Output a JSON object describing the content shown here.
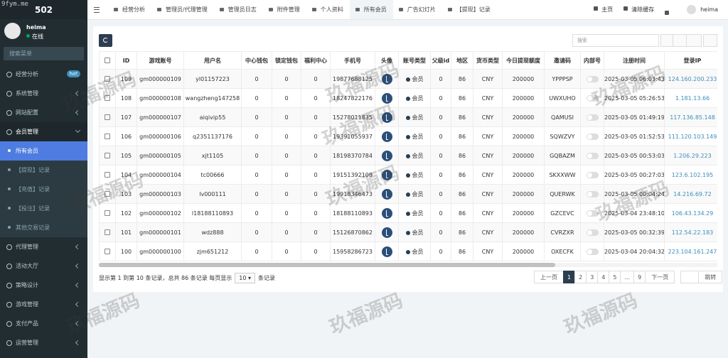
{
  "watermark": {
    "site": "9fym.me",
    "text": "玖福源码"
  },
  "sidebar": {
    "logo": "502",
    "user": {
      "name": "heima",
      "status": "在线"
    },
    "search_placeholder": "搜索菜单",
    "menu": [
      {
        "label": "经营分析",
        "badge": "hot"
      },
      {
        "label": "系统管理"
      },
      {
        "label": "网站配置"
      },
      {
        "label": "会员管理",
        "open": true,
        "children": [
          {
            "label": "所有会员",
            "active": true
          },
          {
            "label": "【提现】记录"
          },
          {
            "label": "【充值】记录"
          },
          {
            "label": "【投注】记录"
          },
          {
            "label": "其他交易记录"
          }
        ]
      },
      {
        "label": "代理管理"
      },
      {
        "label": "活动大厅"
      },
      {
        "label": "策略设计"
      },
      {
        "label": "游戏管理"
      },
      {
        "label": "支付产品"
      },
      {
        "label": "运营管理"
      }
    ]
  },
  "topbar": {
    "tabs": [
      {
        "label": "经营分析"
      },
      {
        "label": "管理员/代理管理"
      },
      {
        "label": "管理员日志"
      },
      {
        "label": "附件管理"
      },
      {
        "label": "个人资料"
      },
      {
        "label": "所有会员",
        "active": true
      },
      {
        "label": "广告幻灯片"
      },
      {
        "label": "【提现】记录"
      }
    ],
    "home": "主页",
    "clear_cache": "清除缓存",
    "user": "heima"
  },
  "toolbar": {
    "search_placeholder": "搜索"
  },
  "table": {
    "columns": [
      "ID",
      "游戏账号",
      "用户名",
      "中心钱包",
      "锁定钱包",
      "福利中心",
      "手机号",
      "头像",
      "账号类型",
      "父级id",
      "地区",
      "货币类型",
      "今日提现额度",
      "邀请码",
      "内部号",
      "注册时间",
      "登录IP"
    ],
    "rows": [
      [
        109,
        "gm000000109",
        "yl01157223",
        0,
        0,
        0,
        "19877688125",
        null,
        "会员",
        0,
        86,
        "CNY",
        200000,
        "YPPPSP",
        null,
        "2025-03-05 06:03:43",
        "124.160.200.233"
      ],
      [
        108,
        "gm000000108",
        "wangzheng147258",
        0,
        0,
        0,
        "18247822176",
        null,
        "会员",
        0,
        86,
        "CNY",
        200000,
        "UWXUHO",
        null,
        "2025-03-05 05:26:53",
        "1.181.13.66"
      ],
      [
        107,
        "gm000000107",
        "aiqivip55",
        0,
        0,
        0,
        "15278011835",
        null,
        "会员",
        0,
        86,
        "CNY",
        200000,
        "QAMUSI",
        null,
        "2025-03-05 01:49:19",
        "117.136.85.148"
      ],
      [
        106,
        "gm000000106",
        "q2351137176",
        0,
        0,
        0,
        "19391055937",
        null,
        "会员",
        0,
        86,
        "CNY",
        200000,
        "SQWZVY",
        null,
        "2025-03-05 01:52:53",
        "111.120.103.149"
      ],
      [
        105,
        "gm000000105",
        "xjt1105",
        0,
        0,
        0,
        "18198370784",
        null,
        "会员",
        0,
        86,
        "CNY",
        200000,
        "GQBAZM",
        null,
        "2025-03-05 00:53:03",
        "1.206.29.223"
      ],
      [
        104,
        "gm000000104",
        "tc00666",
        0,
        0,
        0,
        "19151392108",
        null,
        "会员",
        0,
        86,
        "CNY",
        200000,
        "SKXXWW",
        null,
        "2025-03-05 00:27:03",
        "123.6.102.195"
      ],
      [
        103,
        "gm000000103",
        "lv000111",
        0,
        0,
        0,
        "19918346473",
        null,
        "会员",
        0,
        86,
        "CNY",
        200000,
        "QUERWK",
        null,
        "2025-03-05 00:04:24",
        "14.216.69.72"
      ],
      [
        102,
        "gm000000102",
        "l18188110893",
        0,
        0,
        0,
        "18188110893",
        null,
        "会员",
        0,
        86,
        "CNY",
        200000,
        "GZCEVC",
        null,
        "2025-03-04 23:48:10",
        "106.43.134.29"
      ],
      [
        101,
        "gm000000101",
        "wdz888",
        0,
        0,
        0,
        "15126870862",
        null,
        "会员",
        0,
        86,
        "CNY",
        200000,
        "CVRZXR",
        null,
        "2025-03-05 00:32:39",
        "112.54.22.183"
      ],
      [
        100,
        "gm000000100",
        "zjm651212",
        0,
        0,
        0,
        "15958286723",
        null,
        "会员",
        0,
        86,
        "CNY",
        200000,
        "OXECFK",
        null,
        "2025-03-04 20:04:32",
        "223.104.161.247"
      ]
    ]
  },
  "footer": {
    "summary": "显示第 1 到第 10 条记录，总共 86 条记录 每页显示",
    "page_size": "10 ▾",
    "suffix": "条记录",
    "pagination": {
      "prev": "上一页",
      "pages": [
        "1",
        "2",
        "3",
        "4",
        "5",
        "...",
        "9"
      ],
      "next": "下一页",
      "jump": "跳转"
    }
  }
}
